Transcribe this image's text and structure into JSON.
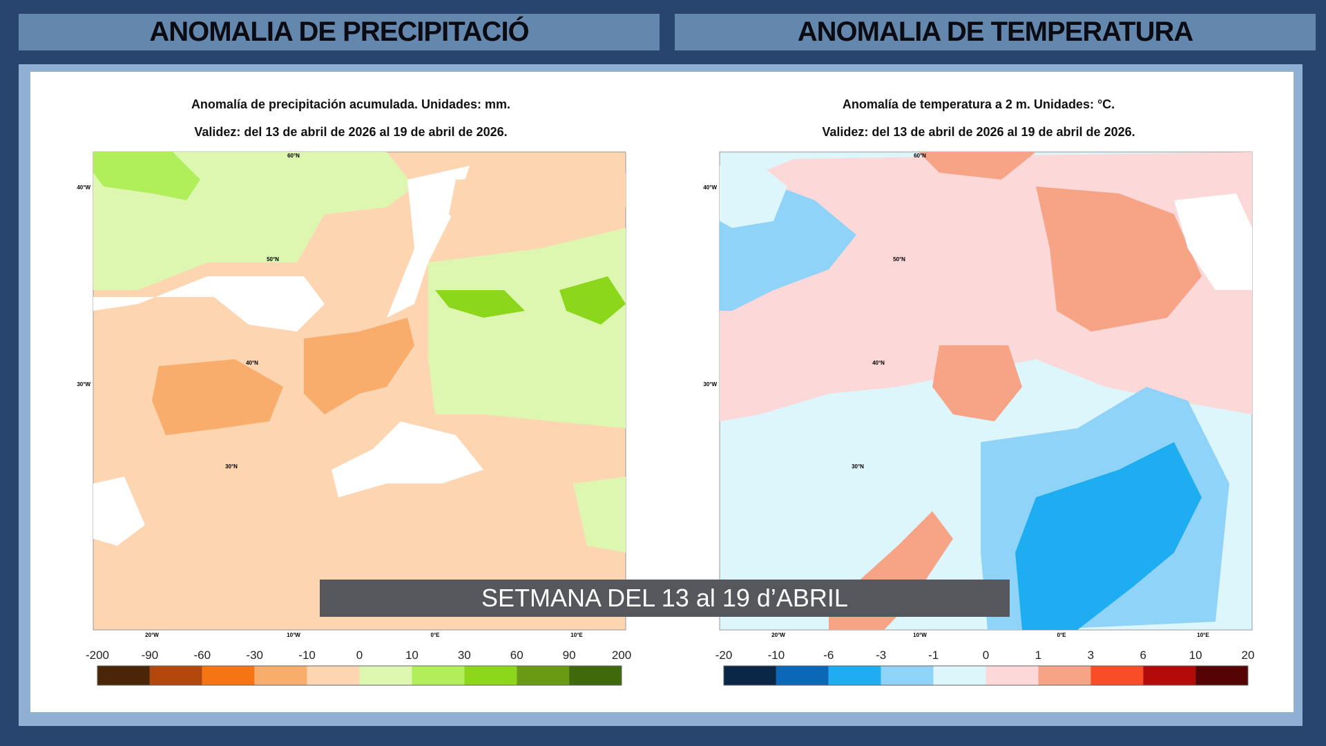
{
  "header": {
    "left": "ANOMALIA DE PRECIPITACIÓ",
    "right": "ANOMALIA DE TEMPERATURA"
  },
  "panels": [
    {
      "title": "Anomalía de precipitación acumulada. Unidades: mm.",
      "subtitle": "Validez: del 13 de abril de 2026 al 19 de abril de 2026.",
      "lon_labels": [
        "20°W",
        "10°W",
        "0°E",
        "10°E"
      ],
      "side_labels": [
        "40°W",
        "30°W"
      ],
      "lat_labels": [
        "60°N",
        "50°N",
        "40°N",
        "30°N"
      ],
      "legend": {
        "labels": [
          -200,
          -90,
          -60,
          -30,
          -10,
          0,
          10,
          30,
          60,
          90,
          200
        ],
        "colors": [
          "#4a2508",
          "#b2470c",
          "#f57514",
          "#f8ad6c",
          "#fdd5b1",
          "#ddf7b0",
          "#b1ef5a",
          "#8cd61c",
          "#6a9a14",
          "#3f6a0c"
        ]
      }
    },
    {
      "title": "Anomalía de temperatura a 2 m. Unidades: °C.",
      "subtitle": "Validez: del 13 de abril de 2026 al 19 de abril de 2026.",
      "lon_labels": [
        "20°W",
        "10°W",
        "0°E",
        "10°E"
      ],
      "side_labels": [
        "40°W",
        "30°W"
      ],
      "lat_labels": [
        "60°N",
        "50°N",
        "40°N",
        "30°N"
      ],
      "legend": {
        "labels": [
          -20,
          -10,
          -6,
          -3,
          -1,
          0,
          1,
          3,
          6,
          10,
          20
        ],
        "colors": [
          "#0a2748",
          "#0b68b8",
          "#1fadf2",
          "#8fd3f8",
          "#dcf6fb",
          "#fcd8d8",
          "#f7a486",
          "#f84d26",
          "#b30a0a",
          "#560303"
        ]
      }
    }
  ],
  "caption": "SETMANA DEL 13 al 19 d’ABRIL"
}
